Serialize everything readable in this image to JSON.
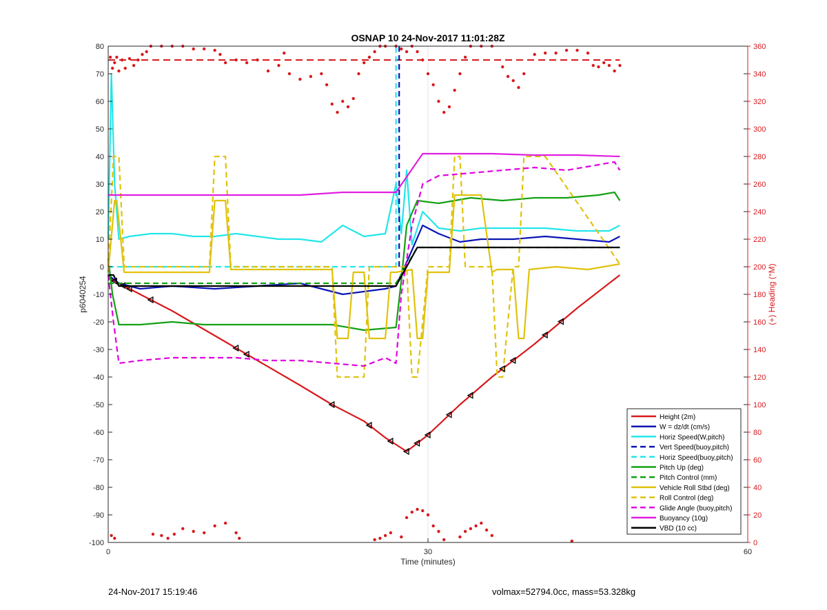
{
  "chart_data": {
    "type": "line",
    "title": "OSNAP 10 24-Nov-2017 11:01:28Z",
    "xlabel": "Time (minutes)",
    "ylabel": "p6040254",
    "y2label": "(+) Heading (°M)",
    "xlim": [
      0,
      60
    ],
    "ylim": [
      -100,
      80
    ],
    "y2lim": [
      0,
      360
    ],
    "xticks": [
      0,
      30,
      60
    ],
    "yticks": [
      -100,
      -90,
      -80,
      -70,
      -60,
      -50,
      -40,
      -30,
      -20,
      -10,
      0,
      10,
      20,
      30,
      40,
      50,
      60,
      70,
      80
    ],
    "y2ticks": [
      0,
      20,
      40,
      60,
      80,
      100,
      120,
      140,
      160,
      180,
      200,
      220,
      240,
      260,
      280,
      300,
      320,
      340,
      360
    ],
    "grid": "x-only",
    "legend_position": "bottom-right",
    "colors": {
      "height": "#d7191c",
      "w": "#0a14b4",
      "horiz": "#22e6ea",
      "pitch": "#12a012",
      "roll": "#e0c20a",
      "glide": "#e000e0",
      "buoy": "#e01ee0",
      "vbd": "#000000",
      "heading": "#d7191c",
      "right_axis": "#d7191c"
    },
    "heading_reference": 350,
    "series": [
      {
        "name": "Height (2m)",
        "key": "height",
        "style": "solid",
        "x": [
          0,
          2,
          6,
          10,
          14,
          18,
          21,
          24,
          26,
          28,
          30,
          33,
          36,
          40,
          44,
          48
        ],
        "y": [
          -4,
          -8,
          -16,
          -25,
          -34,
          -43,
          -50,
          -56,
          -62,
          -67,
          -61,
          -50,
          -40,
          -28,
          -15,
          -3
        ]
      },
      {
        "name": "W = dz/dt (cm/s)",
        "key": "w",
        "style": "solid",
        "x": [
          0,
          1,
          3,
          6,
          10,
          14,
          18,
          20,
          22,
          24,
          26,
          27,
          28.5,
          29.5,
          31,
          33,
          35,
          38,
          41,
          44,
          47,
          48
        ],
        "y": [
          -3,
          -6,
          -8,
          -7,
          -8,
          -7,
          -6,
          -8,
          -10,
          -9,
          -8,
          -7,
          6,
          15,
          12,
          9,
          10,
          10,
          11,
          10,
          9,
          11
        ]
      },
      {
        "name": "Horiz Speed(W,pitch)",
        "key": "horiz",
        "style": "solid",
        "x": [
          0,
          0.3,
          0.6,
          1,
          2,
          4,
          6,
          8,
          10,
          12,
          14,
          16,
          18,
          20,
          22,
          24,
          26,
          27,
          27.5,
          28,
          28.5,
          29.5,
          31,
          33,
          35,
          38,
          41,
          44,
          47,
          48
        ],
        "y": [
          10,
          70,
          30,
          10,
          11,
          12,
          12,
          11,
          11,
          12,
          11,
          10,
          10,
          9,
          15,
          11,
          12,
          30,
          12,
          35,
          8,
          20,
          14,
          13,
          14,
          14,
          14,
          13,
          13,
          15
        ]
      },
      {
        "name": "Vert Speed(buoy,pitch)",
        "key": "w",
        "style": "dashed",
        "x": [
          27.3,
          27.3
        ],
        "y": [
          0,
          80
        ]
      },
      {
        "name": "Horiz Speed(buoy,pitch)",
        "key": "horiz",
        "style": "dashed",
        "x": [
          0,
          27,
          27,
          27.3
        ],
        "y": [
          0,
          0,
          80,
          80
        ]
      },
      {
        "name": "Pitch Up (deg)",
        "key": "pitch",
        "style": "solid",
        "x": [
          0,
          0.4,
          1,
          3,
          6,
          9,
          12,
          15,
          18,
          21,
          24,
          27,
          27.5,
          28,
          29,
          31,
          34,
          37,
          40,
          43,
          46,
          47.5,
          48
        ],
        "y": [
          3,
          -10,
          -21,
          -21,
          -20,
          -21,
          -21,
          -21,
          -21,
          -21,
          -23,
          -22,
          -5,
          15,
          24,
          23,
          25,
          24,
          25,
          25,
          26,
          27,
          24
        ]
      },
      {
        "name": "Pitch Control (mm)",
        "key": "pitch",
        "style": "dashed",
        "x": [
          0,
          1,
          27,
          29,
          48
        ],
        "y": [
          -6,
          -6,
          -6,
          7,
          7
        ]
      },
      {
        "name": "Vehicle Roll Stbd (deg)",
        "key": "roll",
        "style": "solid",
        "x": [
          0,
          0.6,
          0.8,
          1.5,
          9.5,
          10,
          11,
          11.5,
          21,
          21.5,
          22.5,
          23,
          24,
          24.5,
          26,
          26.5,
          27,
          28.5,
          29,
          29.5,
          30,
          32,
          32.5,
          35,
          36,
          36.5,
          38,
          38.5,
          39,
          39.5,
          42,
          45,
          48
        ],
        "y": [
          -2,
          24,
          24,
          -2,
          -2,
          24,
          24,
          -1,
          -1,
          -26,
          -26,
          -2,
          -2,
          -26,
          -26,
          -2,
          -2,
          -1,
          -26,
          -26,
          -2,
          -2,
          26,
          26,
          -2,
          -1,
          -1,
          -26,
          -26,
          -1,
          0,
          -1,
          1
        ]
      },
      {
        "name": "Roll Control (deg)",
        "key": "roll",
        "style": "dashed",
        "x": [
          0,
          0.5,
          1,
          1.5,
          9.5,
          10,
          11,
          11.5,
          21,
          21.5,
          24,
          24.5,
          28,
          28.5,
          29,
          30,
          32,
          32.5,
          33,
          33.5,
          36,
          36.5,
          37,
          38,
          38.5,
          39,
          41,
          48
        ],
        "y": [
          0,
          40,
          40,
          0,
          0,
          40,
          40,
          0,
          0,
          -40,
          -40,
          0,
          0,
          -40,
          -40,
          0,
          0,
          40,
          40,
          0,
          0,
          -40,
          -40,
          0,
          0,
          40,
          40,
          1
        ]
      },
      {
        "name": "Glide Angle (buoy,pitch)",
        "key": "glide",
        "style": "dashed",
        "x": [
          0,
          0.5,
          1,
          3,
          6,
          9,
          12,
          15,
          18,
          21,
          24,
          26,
          27,
          27.5,
          28.5,
          29.5,
          31,
          34,
          37,
          40,
          43,
          46,
          47.5,
          48
        ],
        "y": [
          -3,
          -20,
          -35,
          -34,
          -33,
          -33,
          -33,
          -34,
          -34,
          -35,
          -36,
          -33,
          -35,
          -10,
          15,
          30,
          33,
          34,
          35,
          36,
          35,
          37,
          38,
          35
        ]
      },
      {
        "name": "Buoyancy (10g)",
        "key": "buoy",
        "style": "solid",
        "x": [
          0,
          2,
          6,
          10,
          14,
          18,
          22,
          26,
          27,
          29.5,
          32,
          36,
          40,
          44,
          48
        ],
        "y": [
          26,
          26,
          26,
          26,
          26,
          26,
          27,
          27,
          27,
          41,
          41,
          41,
          40.5,
          40.5,
          40
        ]
      },
      {
        "name": "VBD (10 cc)",
        "key": "vbd",
        "style": "solid",
        "x": [
          0,
          0.5,
          1,
          4,
          10,
          15,
          20,
          24,
          27,
          29,
          30,
          35,
          40,
          45,
          48
        ],
        "y": [
          -3,
          -3,
          -7,
          -7,
          -7,
          -7,
          -7,
          -7,
          -7,
          7,
          7,
          7,
          7,
          7,
          7
        ]
      },
      {
        "name": "",
        "key": "heading",
        "style": "dots",
        "axis": "right",
        "x": [
          0.2,
          0.4,
          0.6,
          0.8,
          1,
          1.3,
          1.6,
          2,
          2.4,
          2.8,
          3.2,
          3.6,
          4,
          5,
          6,
          7,
          8,
          9,
          10,
          10.5,
          11,
          12,
          13,
          14,
          15,
          16,
          16.5,
          17,
          18,
          19,
          20,
          20.5,
          21,
          21.5,
          22,
          22.5,
          23,
          23.5,
          24,
          24.5,
          25,
          25.5,
          26,
          27,
          27.5,
          28,
          28.5,
          29,
          29.5,
          30,
          30.5,
          31,
          31.5,
          32,
          32.5,
          33,
          33.5,
          34,
          35,
          36,
          37,
          37.5,
          38,
          38.5,
          39,
          40,
          41,
          42,
          43,
          44,
          45,
          45.5,
          46,
          46.5,
          47,
          47.5,
          48
        ],
        "y": [
          352,
          344,
          348,
          352,
          342,
          350,
          344,
          351,
          346,
          350,
          354,
          356,
          360,
          360,
          360,
          360,
          358,
          358,
          357,
          354,
          348,
          350,
          348,
          350,
          342,
          346,
          355,
          340,
          336,
          338,
          340,
          332,
          318,
          312,
          320,
          316,
          322,
          340,
          348,
          352,
          356,
          360,
          360,
          360,
          358,
          356,
          360,
          356,
          350,
          340,
          332,
          320,
          312,
          316,
          328,
          340,
          352,
          360,
          360,
          360,
          345,
          338,
          335,
          330,
          340,
          354,
          355,
          355,
          357,
          357,
          355,
          346,
          345,
          348,
          346,
          342,
          346
        ]
      },
      {
        "name": "",
        "key": "heading",
        "style": "dots",
        "axis": "right",
        "x": [
          0.3,
          0.6,
          4.2,
          5,
          5.6,
          6.2,
          7,
          8,
          9,
          10,
          11,
          12,
          12.3,
          25,
          25.5,
          26,
          26.5,
          27.5,
          28,
          28.5,
          29,
          29.5,
          30,
          30.5,
          31,
          31.5,
          33,
          33.5,
          34,
          34.5,
          35,
          35.5,
          36,
          43.5
        ],
        "y": [
          5,
          3,
          6,
          5,
          3,
          6,
          10,
          8,
          7,
          12,
          14,
          7,
          3,
          2,
          3,
          5,
          7,
          4,
          18,
          22,
          24,
          23,
          20,
          12,
          8,
          2,
          4,
          8,
          10,
          12,
          14,
          9,
          5,
          1
        ]
      }
    ],
    "legend": [
      {
        "label": "Height (2m)",
        "key": "height",
        "style": "solid"
      },
      {
        "label": "W = dz/dt (cm/s)",
        "key": "w",
        "style": "solid"
      },
      {
        "label": "Horiz Speed(W,pitch)",
        "key": "horiz",
        "style": "solid"
      },
      {
        "label": "Vert Speed(buoy,pitch)",
        "key": "w",
        "style": "dashed"
      },
      {
        "label": "Horiz Speed(buoy,pitch)",
        "key": "horiz",
        "style": "dashed"
      },
      {
        "label": "Pitch Up (deg)",
        "key": "pitch",
        "style": "solid"
      },
      {
        "label": "Pitch Control (mm)",
        "key": "pitch",
        "style": "dashed"
      },
      {
        "label": "Vehicle Roll Stbd (deg)",
        "key": "roll",
        "style": "solid"
      },
      {
        "label": "Roll Control (deg)",
        "key": "roll",
        "style": "dashed"
      },
      {
        "label": "Glide Angle (buoy,pitch)",
        "key": "glide",
        "style": "dashed"
      },
      {
        "label": "Buoyancy (10g)",
        "key": "buoy",
        "style": "solid"
      },
      {
        "label": "VBD (10 cc)",
        "key": "vbd",
        "style": "solid"
      }
    ],
    "height_markers_x": [
      0.6,
      1.4,
      2,
      4,
      12,
      13,
      21,
      24.5,
      26.5,
      28,
      29,
      30,
      32,
      34,
      37,
      38,
      41,
      42.5
    ]
  },
  "footer": {
    "timestamp": "24-Nov-2017 15:19:46",
    "summary": "volmax=52794.0cc, mass=53.328kg"
  }
}
